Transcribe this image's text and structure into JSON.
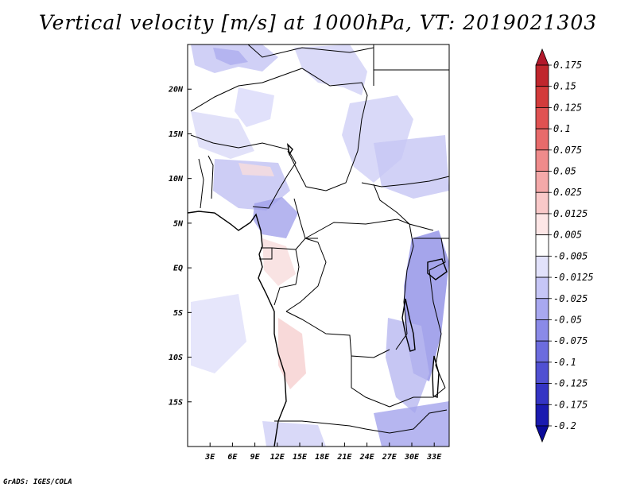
{
  "title": "Vertical velocity [m/s] at 1000hPa, VT: 2019021303",
  "credit": "GrADS: IGES/COLA",
  "map": {
    "lat_labels": [
      "20N",
      "15N",
      "10N",
      "5N",
      "EQ",
      "5S",
      "10S",
      "15S"
    ],
    "lat_values": [
      20,
      15,
      10,
      5,
      0,
      -5,
      -10,
      -15
    ],
    "lat_range": [
      -20,
      25
    ],
    "lon_labels": [
      "3E",
      "6E",
      "9E",
      "12E",
      "15E",
      "18E",
      "21E",
      "24E",
      "27E",
      "30E",
      "33E"
    ],
    "lon_values": [
      3,
      6,
      9,
      12,
      15,
      18,
      21,
      24,
      27,
      30,
      33
    ],
    "lon_range": [
      0,
      35
    ]
  },
  "colorbar": {
    "labels": [
      "0.175",
      "0.15",
      "0.125",
      "0.1",
      "0.075",
      "0.05",
      "0.025",
      "0.0125",
      "0.005",
      "-0.005",
      "-0.0125",
      "-0.025",
      "-0.05",
      "-0.075",
      "-0.1",
      "-0.125",
      "-0.175",
      "-0.2"
    ],
    "colors": [
      "#b2182b",
      "#c0262d",
      "#d33b3b",
      "#e05252",
      "#e86b6b",
      "#ef8b8b",
      "#f4a9a9",
      "#f9c9c9",
      "#fde6e6",
      "#ffffff",
      "#e2e2fb",
      "#c6c6f6",
      "#a8a8f0",
      "#8a8ae8",
      "#6c6cde",
      "#5050d2",
      "#3434c4",
      "#1a1ab0",
      "#0b0b9a"
    ]
  }
}
